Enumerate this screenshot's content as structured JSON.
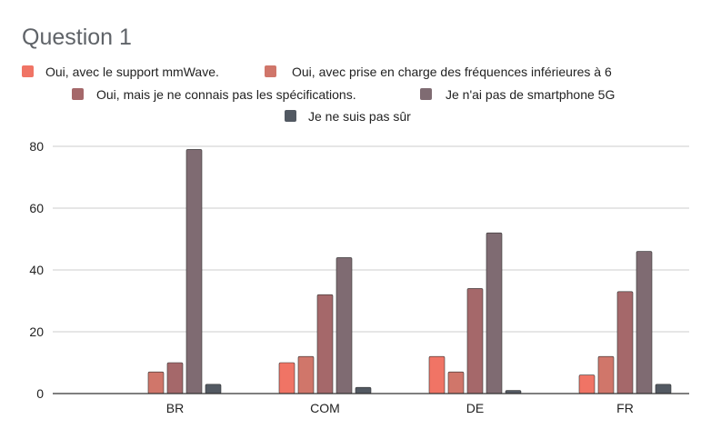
{
  "chart_data": {
    "type": "bar",
    "title": "Question 1",
    "xlabel": "",
    "ylabel": "",
    "ylim": [
      0,
      80
    ],
    "yticks": [
      0,
      20,
      40,
      60,
      80
    ],
    "grid": true,
    "legend_position": "top",
    "categories": [
      "BR",
      "COM",
      "DE",
      "FR"
    ],
    "series": [
      {
        "name": "Oui, avec le support mmWave.",
        "color": "#f07465",
        "values": [
          0,
          10,
          12,
          6
        ]
      },
      {
        "name": "Oui, avec prise en charge des fréquences inférieures à 6",
        "color": "#d0766a",
        "values": [
          7,
          12,
          7,
          12
        ]
      },
      {
        "name": "Oui, mais je ne connais pas les spécifications.",
        "color": "#a5686a",
        "values": [
          10,
          32,
          34,
          33
        ]
      },
      {
        "name": "Je n'ai pas de smartphone 5G",
        "color": "#7f6b72",
        "values": [
          79,
          44,
          52,
          46
        ]
      },
      {
        "name": "Je ne suis pas sûr",
        "color": "#525962",
        "values": [
          3,
          2,
          1,
          3
        ]
      }
    ]
  }
}
